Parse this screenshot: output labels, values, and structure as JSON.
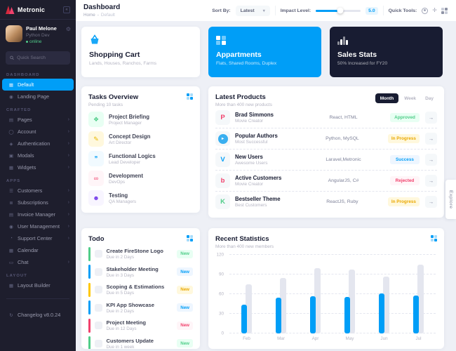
{
  "icons": {
    "chevron_right": "›",
    "chevron_down": "▾",
    "arrow_right": "→",
    "gear": "⚙",
    "collapse": "«",
    "move": "✛",
    "status_dot": "●"
  },
  "colors": {
    "primary": "#009ef7",
    "dark": "#181c32",
    "sidebar_bg": "#1e1e2d",
    "success": "#50cd89",
    "warning": "#ffc700",
    "danger": "#f1416c"
  },
  "sidebar": {
    "brand": "Metronic",
    "user": {
      "name": "Paul Melone",
      "role": "Python Dev",
      "status": "online"
    },
    "search_placeholder": "Quick Search",
    "sections": [
      {
        "title": "DASHBOARD",
        "items": [
          {
            "label": "Default",
            "icon": "▦"
          },
          {
            "label": "Landing Page",
            "icon": "◉"
          }
        ]
      },
      {
        "title": "CRAFTED",
        "items": [
          {
            "label": "Pages",
            "icon": "▤"
          },
          {
            "label": "Account",
            "icon": "◯"
          },
          {
            "label": "Authentication",
            "icon": "◈"
          },
          {
            "label": "Modals",
            "icon": "▣"
          },
          {
            "label": "Widgets",
            "icon": "▦"
          }
        ]
      },
      {
        "title": "APPS",
        "items": [
          {
            "label": "Customers",
            "icon": "☰"
          },
          {
            "label": "Subscriptions",
            "icon": "≣"
          },
          {
            "label": "Invoice Manager",
            "icon": "▤"
          },
          {
            "label": "User Management",
            "icon": "◉"
          },
          {
            "label": "Support Center",
            "icon": "◔"
          },
          {
            "label": "Calendar",
            "icon": "▦"
          },
          {
            "label": "Chat",
            "icon": "▭"
          }
        ]
      },
      {
        "title": "LAYOUT",
        "items": [
          {
            "label": "Layout Builder",
            "icon": "▦"
          }
        ]
      }
    ],
    "changelog": {
      "label": "Changelog v8.0.24",
      "icon": "↻"
    }
  },
  "header": {
    "title": "Dashboard",
    "breadcrumb_home": "Home",
    "breadcrumb_sep": "-",
    "breadcrumb_current": "Default",
    "sort_label": "Sort By:",
    "sort_value": "Latest",
    "impact_label": "Impact Level:",
    "impact_value": "5.0",
    "quick_tools_label": "Quick Tools:"
  },
  "summary_cards": [
    {
      "title": "Shopping Cart",
      "subtitle": "Lands, Houses, Ranchos, Farms",
      "icon": "shopping-basket"
    },
    {
      "title": "Appartments",
      "subtitle": "Flats, Shared Rooms, Duplex",
      "icon": "grid-squares"
    },
    {
      "title": "Sales Stats",
      "subtitle": "50% Increased for FY20",
      "icon": "bar-chart"
    }
  ],
  "tasks": {
    "title": "Tasks Overview",
    "subtitle": "Pending 10 tasks",
    "items": [
      {
        "title": "Project Briefing",
        "subtitle": "Project Manager",
        "icon": "❖"
      },
      {
        "title": "Concept Design",
        "subtitle": "Art Director",
        "icon": "✎"
      },
      {
        "title": "Functional Logics",
        "subtitle": "Lead Developer",
        "icon": "❞"
      },
      {
        "title": "Development",
        "subtitle": "DevOps",
        "icon": "∞"
      },
      {
        "title": "Testing",
        "subtitle": "QA Managers",
        "icon": "☻"
      }
    ]
  },
  "products": {
    "title": "Latest Products",
    "subtitle": "More than 400 new products",
    "tabs": [
      {
        "label": "Month"
      },
      {
        "label": "Week"
      },
      {
        "label": "Day"
      }
    ],
    "rows": [
      {
        "name": "Brad Simmons",
        "role": "Movie Creator",
        "tech": "React, HTML",
        "status": "Approved",
        "icon": "P"
      },
      {
        "name": "Popular Authors",
        "role": "Most Successful",
        "tech": "Python, MySQL",
        "status": "In Progress",
        "icon": "▸"
      },
      {
        "name": "New Users",
        "role": "Awesome Users",
        "tech": "Laravel,Metronic",
        "status": "Success",
        "icon": "V"
      },
      {
        "name": "Active Customers",
        "role": "Movie Creator",
        "tech": "AngularJS, C#",
        "status": "Rejected",
        "icon": "b"
      },
      {
        "name": "Bestseller Theme",
        "role": "Best Customers",
        "tech": "ReactJS, Ruby",
        "status": "In Progress",
        "icon": "K"
      }
    ]
  },
  "todo": {
    "title": "Todo",
    "items": [
      {
        "title": "Create FireStone Logo",
        "due": "Due in 2 Days",
        "badge": "New"
      },
      {
        "title": "Stakeholder Meeting",
        "due": "Due in 3 Days",
        "badge": "New"
      },
      {
        "title": "Scoping & Estimations",
        "due": "Due in 5 Days",
        "badge": "New"
      },
      {
        "title": "KPI App Showcase",
        "due": "Due in 2 Days",
        "badge": "New"
      },
      {
        "title": "Project Meeting",
        "due": "Due in 12 Days",
        "badge": "New"
      },
      {
        "title": "Customers Update",
        "due": "Due in 1 week",
        "badge": "New"
      }
    ]
  },
  "stats": {
    "title": "Recent Statistics",
    "subtitle": "More than 400 new members"
  },
  "chart_data": {
    "type": "bar",
    "title": "Recent Statistics",
    "categories": [
      "Feb",
      "Mar",
      "Apr",
      "May",
      "Jun",
      "Jul"
    ],
    "series": [
      {
        "name": "blue-bars",
        "color": "#009ef7",
        "values": [
          44,
          55,
          57,
          56,
          61,
          58
        ]
      },
      {
        "name": "gray-bars",
        "color": "#e4e6ef",
        "values": [
          75,
          85,
          100,
          97,
          87,
          105
        ]
      }
    ],
    "xlabel": "",
    "ylabel": "",
    "ylim": [
      0,
      120
    ],
    "yticks": [
      0,
      30,
      60,
      90,
      120
    ],
    "grid": "horizontal-dashed",
    "legend": "none"
  },
  "explore_label": "Explore"
}
